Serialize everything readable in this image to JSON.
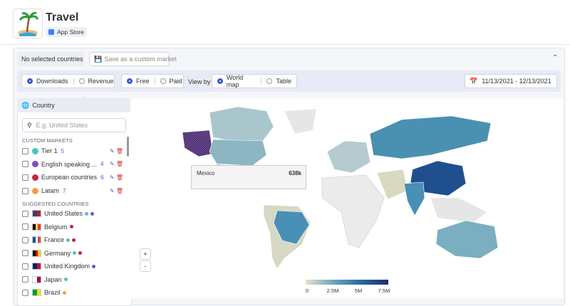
{
  "app": {
    "title": "Travel",
    "store": "App Store"
  },
  "toolbar": {
    "selection": "No selected countries",
    "save": "Save as a custom market",
    "metric": [
      "Downloads",
      "Revenue"
    ],
    "price": [
      "Free",
      "Paid"
    ],
    "view_by_label": "View by",
    "view": [
      "World map",
      "Table"
    ],
    "date_range": "11/13/2021 - 12/13/2021"
  },
  "sidebar": {
    "header": "Country",
    "search_placeholder": "E.g. United States",
    "custom_title": "CUSTOM MARKETS",
    "custom": [
      {
        "name": "Tier 1",
        "count": 5
      },
      {
        "name": "English speaking ...",
        "count": 4
      },
      {
        "name": "European countries",
        "count": 6
      },
      {
        "name": "Latam",
        "count": 7
      }
    ],
    "suggested_title": "SUGGESTED COUNTRIES",
    "suggested": [
      "United States",
      "Belgium",
      "France",
      "Germany",
      "United Kingdom",
      "Japan",
      "Brazil"
    ]
  },
  "map": {
    "tooltip": {
      "country": "Mexico",
      "value": "638k"
    },
    "legend": [
      "0",
      "2.5M",
      "5M",
      "7.5M"
    ],
    "zoom": [
      "+",
      "-"
    ]
  }
}
